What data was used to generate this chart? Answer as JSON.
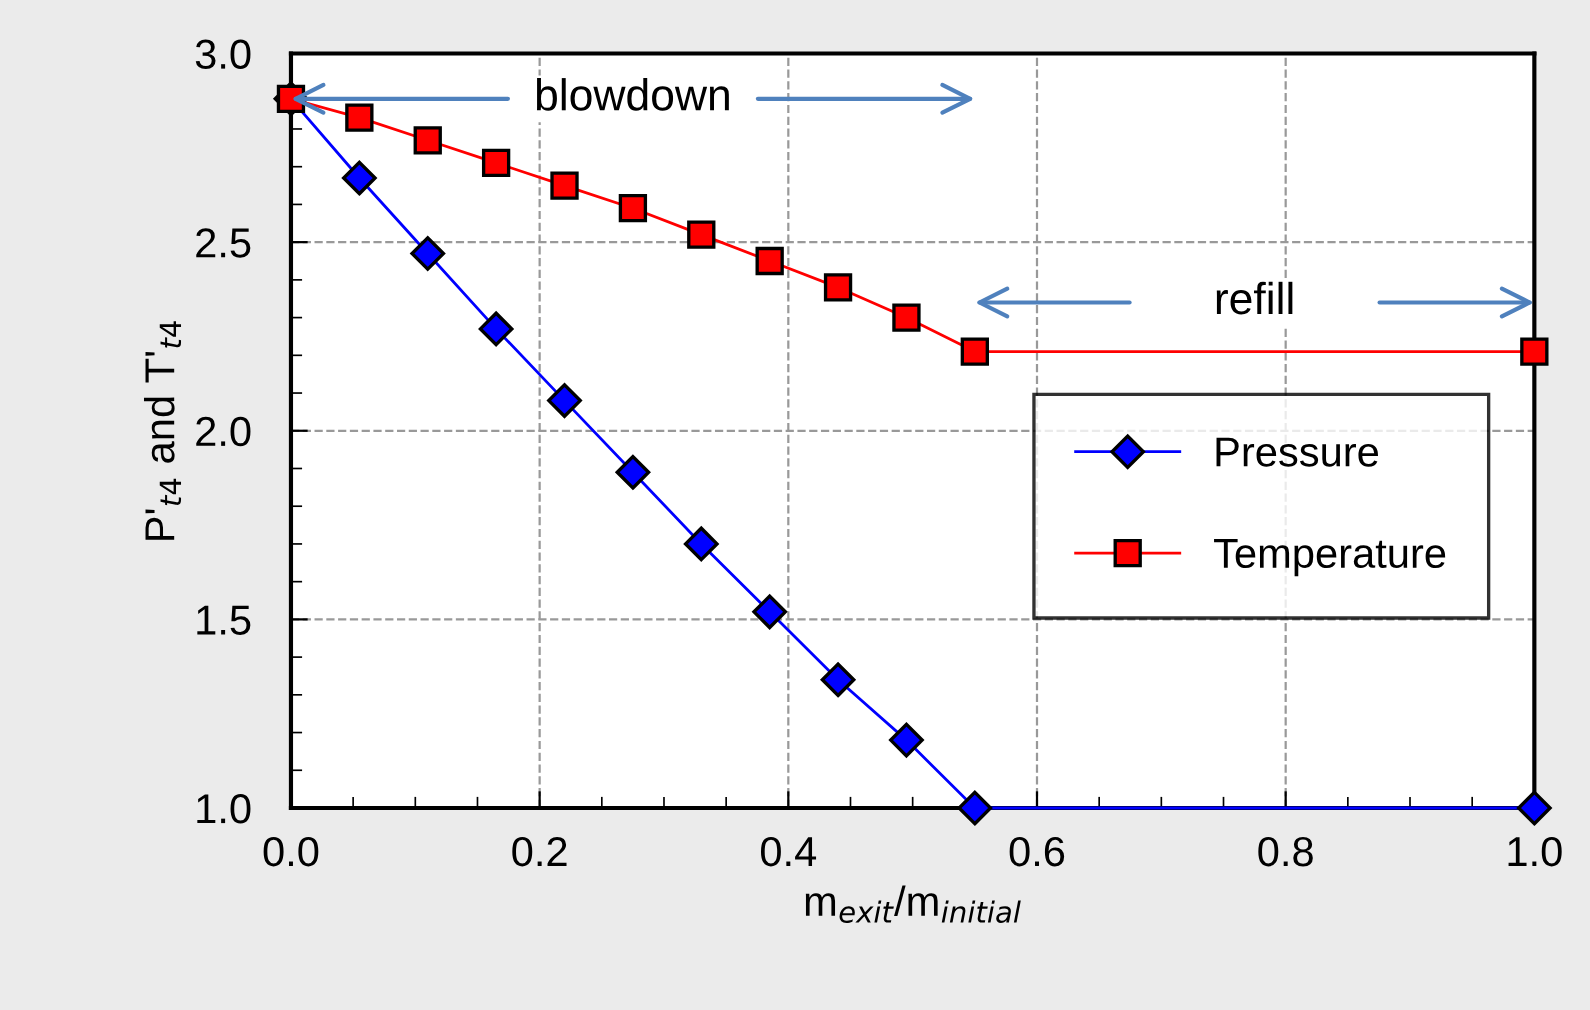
{
  "chart_data": {
    "type": "line",
    "xlabel": "m$_{exit}$/m$_{initial}$",
    "ylabel": "P'$_{t4}$ and T'$_{t4}$",
    "x": [
      0,
      0.055,
      0.11,
      0.165,
      0.22,
      0.275,
      0.33,
      0.385,
      0.44,
      0.495,
      0.55,
      1.0
    ],
    "series": [
      {
        "name": "Pressure",
        "color": "#0000ff",
        "marker": "diamond",
        "values": [
          2.88,
          2.67,
          2.47,
          2.27,
          2.08,
          1.89,
          1.7,
          1.52,
          1.34,
          1.18,
          1.0,
          1.0
        ]
      },
      {
        "name": "Temperature",
        "color": "#ff0000",
        "marker": "square",
        "values": [
          2.88,
          2.83,
          2.77,
          2.71,
          2.65,
          2.59,
          2.52,
          2.45,
          2.38,
          2.3,
          2.21,
          2.21
        ]
      }
    ],
    "annotations": [
      {
        "text": "blowdown",
        "x": 0,
        "y": 2.88
      },
      "refill"
    ],
    "xlim": [
      0,
      1.0
    ],
    "ylim": [
      1.0,
      3.0
    ],
    "xticks": [
      {
        "value": 0,
        "label": "0.0"
      },
      0.2,
      0.4,
      0.6,
      0.8,
      {
        "value": 1.0,
        "label": "1.0"
      }
    ],
    "yticks": [
      {
        "value": 1.0,
        "label": "1.0"
      },
      1.5,
      {
        "value": 2.0,
        "label": "2.0"
      },
      2.5,
      {
        "value": 3.0,
        "label": "3.0"
      }
    ],
    "grid": true,
    "legend": "right",
    "line_style": "solid"
  }
}
